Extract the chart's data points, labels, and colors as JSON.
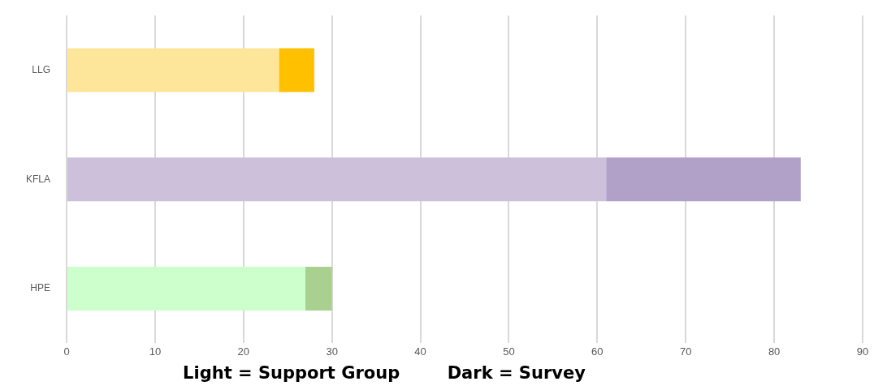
{
  "chart_data": {
    "type": "bar",
    "orientation": "horizontal",
    "stacked": true,
    "categories": [
      "LLG",
      "KFLA",
      "HPE"
    ],
    "series": [
      {
        "colors": [
          "#fde699",
          "#ccc0da",
          "#ccffcc"
        ],
        "values": [
          24,
          61,
          27
        ]
      },
      {
        "colors": [
          "#ffc000",
          "#b1a0c7",
          "#a9d08e"
        ],
        "values": [
          4,
          22,
          3
        ]
      }
    ],
    "xlim": [
      0,
      90
    ],
    "xticks": [
      0,
      10,
      20,
      30,
      40,
      50,
      60,
      70,
      80,
      90
    ],
    "grid": "x",
    "legend": false,
    "annotations": [
      "Light = Support Group        Dark = Survey"
    ]
  }
}
